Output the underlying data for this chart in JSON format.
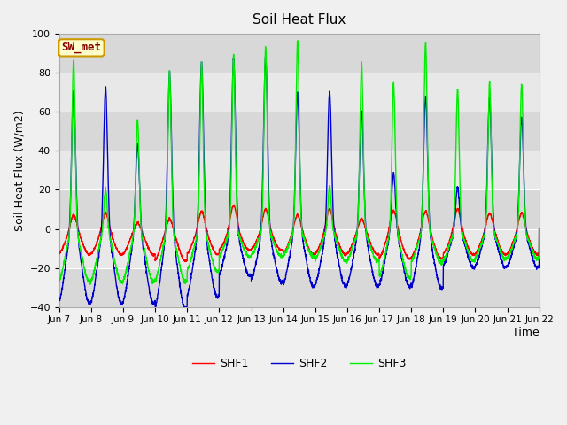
{
  "title": "Soil Heat Flux",
  "xlabel": "Time",
  "ylabel": "Soil Heat Flux (W/m2)",
  "ylim": [
    -40,
    100
  ],
  "yticks": [
    -40,
    -20,
    0,
    20,
    40,
    60,
    80,
    100
  ],
  "x_labels": [
    "Jun 7",
    "Jun 8",
    "Jun 9",
    "Jun 10",
    "Jun 11",
    "Jun 12",
    "Jun 13",
    "Jun 14",
    "Jun 15",
    "Jun 16",
    "Jun 17",
    "Jun 18",
    "Jun 19",
    "Jun 20",
    "Jun 21",
    "Jun 22"
  ],
  "shf1_color": "#ff0000",
  "shf2_color": "#0000cc",
  "shf3_color": "#00ee00",
  "line_width": 1.0,
  "bg_color": "#f8f8f8",
  "plot_bg": "#e8e8e8",
  "grid_color": "#ffffff",
  "legend_label": "SW_met",
  "legend_box_facecolor": "#ffffcc",
  "legend_box_edgecolor": "#cc9900",
  "legend_text_color": "#880000",
  "n_days": 15,
  "n_points": 3000
}
